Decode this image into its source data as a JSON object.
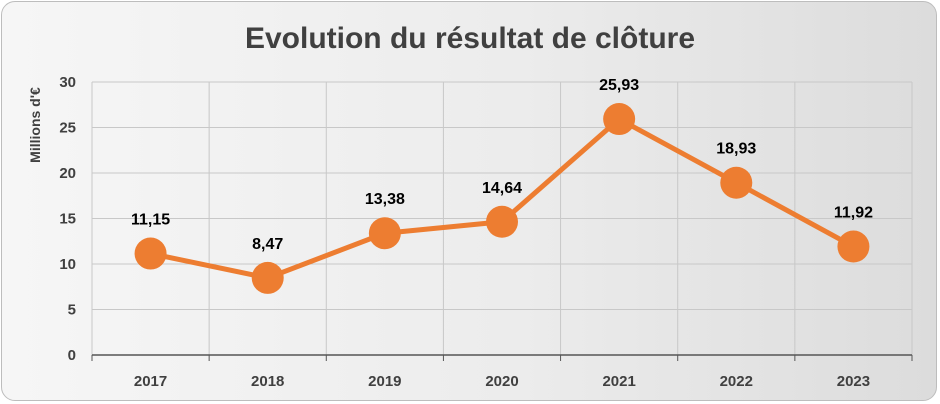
{
  "chart_data": {
    "type": "line",
    "title": "Evolution du résultat de clôture",
    "xlabel": "",
    "ylabel": "Millions d'€",
    "categories": [
      "2017",
      "2018",
      "2019",
      "2020",
      "2021",
      "2022",
      "2023"
    ],
    "series": [
      {
        "values": [
          11.15,
          8.47,
          13.38,
          14.64,
          25.93,
          18.93,
          11.92
        ],
        "labels": [
          "11,15",
          "8,47",
          "13,38",
          "14,64",
          "25,93",
          "18,93",
          "11,92"
        ],
        "color": "#ed7d31"
      }
    ],
    "ylim": [
      0,
      30
    ],
    "yticks": [
      0,
      5,
      10,
      15,
      20,
      25,
      30
    ],
    "grid": true,
    "legend": "none"
  }
}
